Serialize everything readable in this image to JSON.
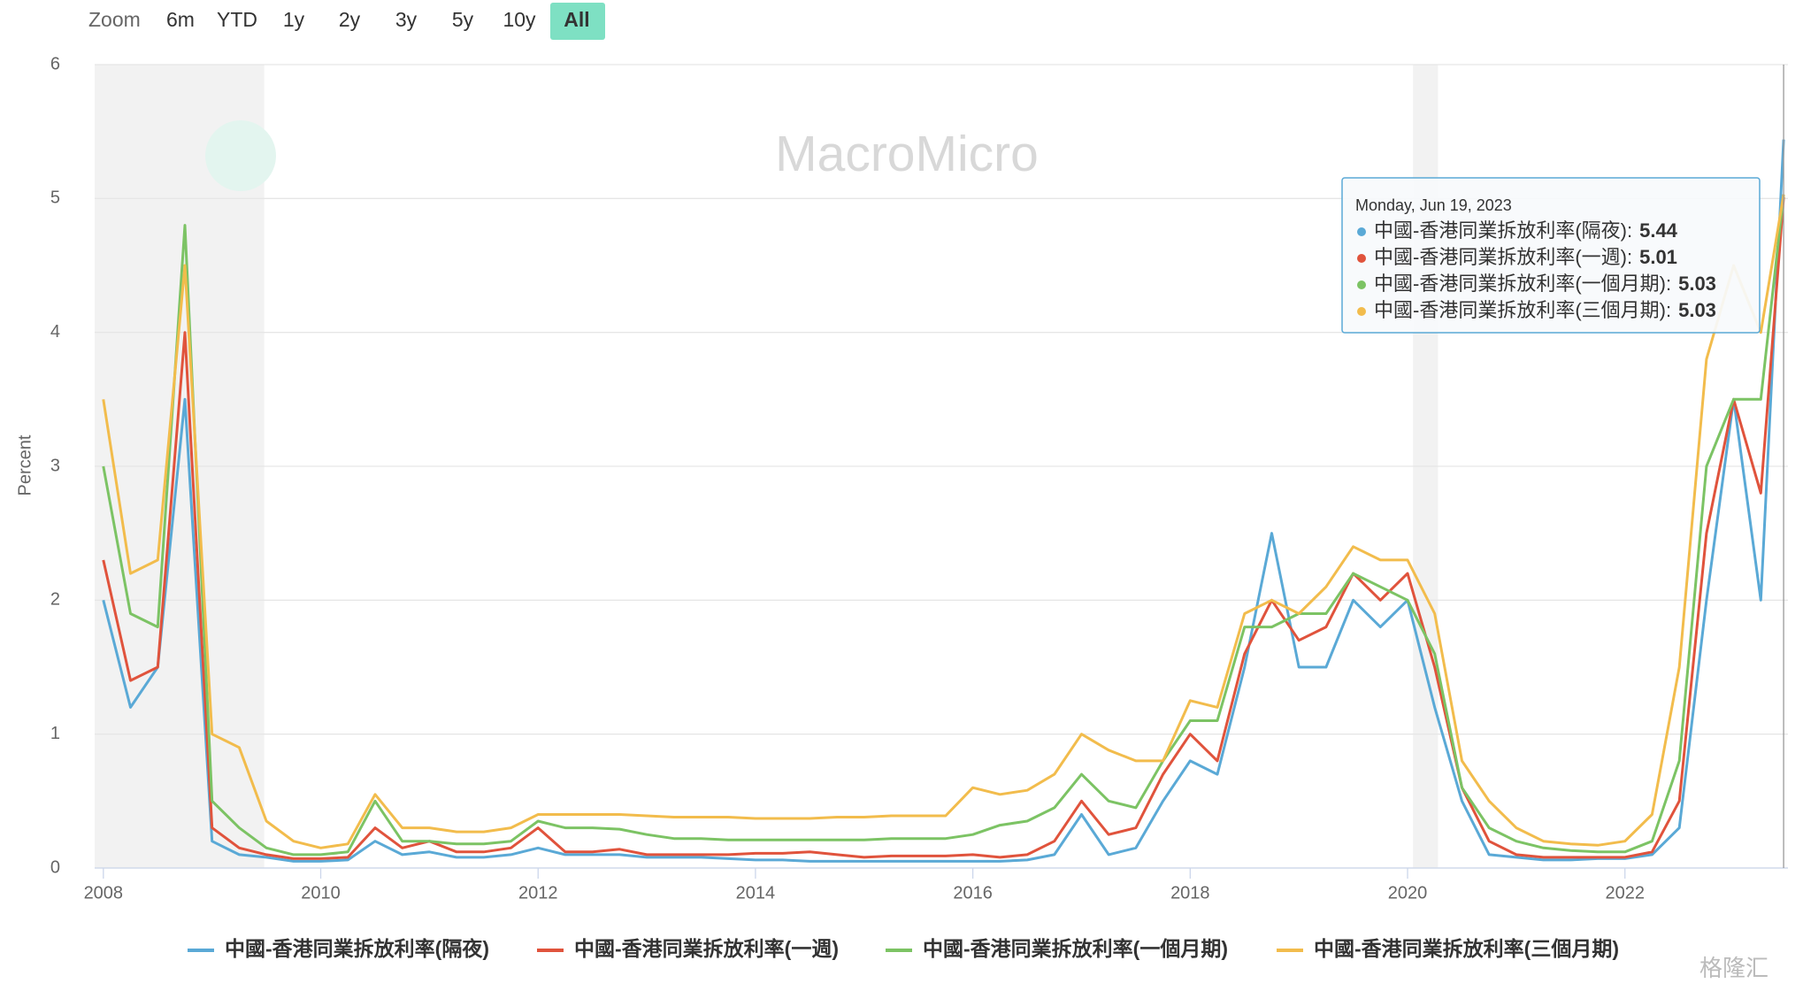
{
  "chart_data": {
    "type": "line",
    "y_label": "Percent",
    "zoom": {
      "label": "Zoom",
      "buttons": [
        "6m",
        "YTD",
        "1y",
        "2y",
        "3y",
        "5y",
        "10y",
        "All"
      ],
      "selected": "All"
    },
    "watermark": "MacroMicro",
    "source_logo": "格隆汇",
    "x": [
      2008.0,
      2008.25,
      2008.5,
      2008.75,
      2009.0,
      2009.25,
      2009.5,
      2009.75,
      2010.0,
      2010.25,
      2010.5,
      2010.75,
      2011.0,
      2011.25,
      2011.5,
      2011.75,
      2012.0,
      2012.25,
      2012.5,
      2012.75,
      2013.0,
      2013.25,
      2013.5,
      2013.75,
      2014.0,
      2014.25,
      2014.5,
      2014.75,
      2015.0,
      2015.25,
      2015.5,
      2015.75,
      2016.0,
      2016.25,
      2016.5,
      2016.75,
      2017.0,
      2017.25,
      2017.5,
      2017.75,
      2018.0,
      2018.25,
      2018.5,
      2018.75,
      2019.0,
      2019.25,
      2019.5,
      2019.75,
      2020.0,
      2020.25,
      2020.5,
      2020.75,
      2021.0,
      2021.25,
      2021.5,
      2021.75,
      2022.0,
      2022.25,
      2022.5,
      2022.75,
      2023.0,
      2023.25,
      2023.46
    ],
    "series": [
      {
        "name": "中國-香港同業拆放利率(隔夜)",
        "color": "#5aa9d6",
        "values": [
          2.0,
          1.2,
          1.5,
          3.5,
          0.2,
          0.1,
          0.08,
          0.05,
          0.05,
          0.06,
          0.2,
          0.1,
          0.12,
          0.08,
          0.08,
          0.1,
          0.15,
          0.1,
          0.1,
          0.1,
          0.08,
          0.08,
          0.08,
          0.07,
          0.06,
          0.06,
          0.05,
          0.05,
          0.05,
          0.05,
          0.05,
          0.05,
          0.05,
          0.05,
          0.06,
          0.1,
          0.4,
          0.1,
          0.15,
          0.5,
          0.8,
          0.7,
          1.5,
          2.5,
          1.5,
          1.5,
          2.0,
          1.8,
          2.0,
          1.2,
          0.5,
          0.1,
          0.08,
          0.06,
          0.06,
          0.07,
          0.07,
          0.1,
          0.3,
          2.0,
          3.5,
          2.0,
          5.44
        ]
      },
      {
        "name": "中國-香港同業拆放利率(一週)",
        "color": "#e0533c",
        "values": [
          2.3,
          1.4,
          1.5,
          4.0,
          0.3,
          0.15,
          0.1,
          0.07,
          0.07,
          0.08,
          0.3,
          0.15,
          0.2,
          0.12,
          0.12,
          0.15,
          0.3,
          0.12,
          0.12,
          0.14,
          0.1,
          0.1,
          0.1,
          0.1,
          0.11,
          0.11,
          0.12,
          0.1,
          0.08,
          0.09,
          0.09,
          0.09,
          0.1,
          0.08,
          0.1,
          0.2,
          0.5,
          0.25,
          0.3,
          0.7,
          1.0,
          0.8,
          1.6,
          2.0,
          1.7,
          1.8,
          2.2,
          2.0,
          2.2,
          1.5,
          0.6,
          0.2,
          0.1,
          0.08,
          0.08,
          0.08,
          0.08,
          0.12,
          0.5,
          2.5,
          3.5,
          2.8,
          5.01
        ]
      },
      {
        "name": "中國-香港同業拆放利率(一個月期)",
        "color": "#7cc364",
        "values": [
          3.0,
          1.9,
          1.8,
          4.8,
          0.5,
          0.3,
          0.15,
          0.1,
          0.1,
          0.12,
          0.5,
          0.2,
          0.2,
          0.18,
          0.18,
          0.2,
          0.35,
          0.3,
          0.3,
          0.29,
          0.25,
          0.22,
          0.22,
          0.21,
          0.21,
          0.21,
          0.21,
          0.21,
          0.21,
          0.22,
          0.22,
          0.22,
          0.25,
          0.32,
          0.35,
          0.45,
          0.7,
          0.5,
          0.45,
          0.8,
          1.1,
          1.1,
          1.8,
          1.8,
          1.9,
          1.9,
          2.2,
          2.1,
          2.0,
          1.6,
          0.6,
          0.3,
          0.2,
          0.15,
          0.13,
          0.12,
          0.12,
          0.2,
          0.8,
          3.0,
          3.5,
          3.5,
          5.03
        ]
      },
      {
        "name": "中國-香港同業拆放利率(三個月期)",
        "color": "#f2bc4c",
        "values": [
          3.5,
          2.2,
          2.3,
          4.5,
          1.0,
          0.9,
          0.35,
          0.2,
          0.15,
          0.18,
          0.55,
          0.3,
          0.3,
          0.27,
          0.27,
          0.3,
          0.4,
          0.4,
          0.4,
          0.4,
          0.39,
          0.38,
          0.38,
          0.38,
          0.37,
          0.37,
          0.37,
          0.38,
          0.38,
          0.39,
          0.39,
          0.39,
          0.6,
          0.55,
          0.58,
          0.7,
          1.0,
          0.88,
          0.8,
          0.8,
          1.25,
          1.2,
          1.9,
          2.0,
          1.9,
          2.1,
          2.4,
          2.3,
          2.3,
          1.9,
          0.8,
          0.5,
          0.3,
          0.2,
          0.18,
          0.17,
          0.2,
          0.4,
          1.5,
          3.8,
          4.5,
          4.0,
          5.03
        ]
      }
    ],
    "xlim": [
      2007.92,
      2023.5
    ],
    "xticks": [
      2008,
      2010,
      2012,
      2014,
      2016,
      2018,
      2020,
      2022
    ],
    "ylim": [
      0,
      6
    ],
    "yticks": [
      0,
      1,
      2,
      3,
      4,
      5,
      6
    ],
    "grid": true,
    "shaded_ranges": [
      [
        2007.92,
        2009.48
      ],
      [
        2020.05,
        2020.28
      ]
    ],
    "legend": "bottom",
    "tooltip": {
      "x": 2023.46,
      "date": "Monday, Jun 19, 2023",
      "items": [
        {
          "label": "中國-香港同業拆放利率(隔夜):",
          "value": 5.44
        },
        {
          "label": "中國-香港同業拆放利率(一週):",
          "value": 5.01
        },
        {
          "label": "中國-香港同業拆放利率(一個月期):",
          "value": 5.03
        },
        {
          "label": "中國-香港同業拆放利率(三個月期):",
          "value": 5.03
        }
      ]
    }
  }
}
